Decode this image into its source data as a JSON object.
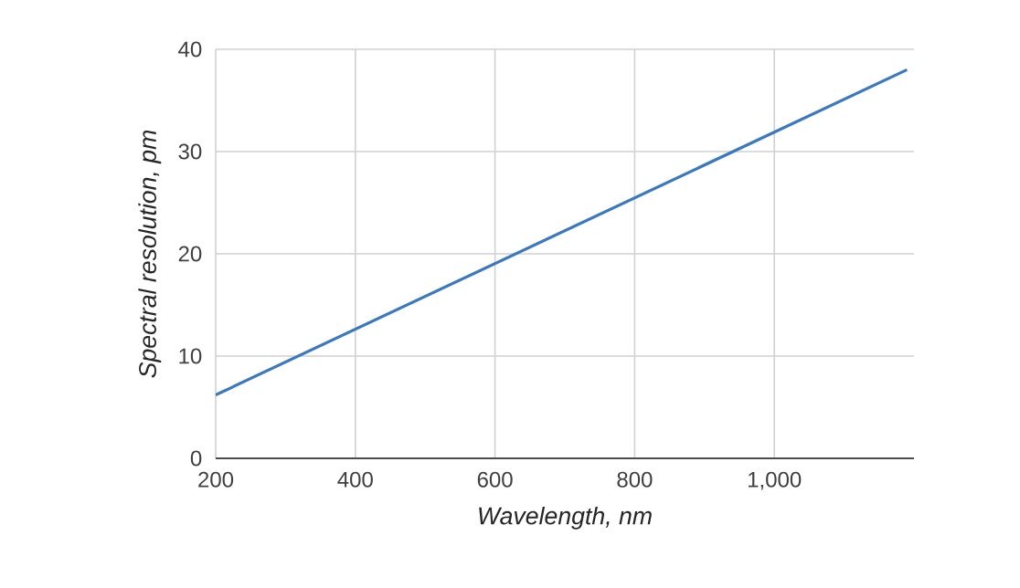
{
  "chart_data": {
    "type": "line",
    "xlabel": "Wavelength, nm",
    "ylabel": "Spectral resolution, pm",
    "x": [
      200,
      1190
    ],
    "series": [
      {
        "color": "#3a78c0",
        "values": [
          6.2,
          38
        ]
      }
    ],
    "xlim": [
      200,
      1200
    ],
    "xticks": [
      200,
      400,
      600,
      800,
      {
        "value": 1000,
        "label": "1,000"
      }
    ],
    "ylim": [
      0,
      40
    ],
    "yticks": [
      0,
      10,
      20,
      30,
      40
    ],
    "grid": true,
    "marker": "none",
    "line_style": "solid"
  }
}
